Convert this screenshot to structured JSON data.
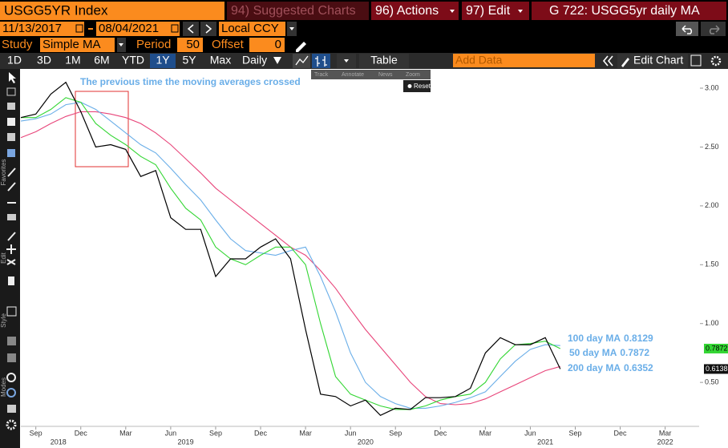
{
  "header": {
    "security": "USGG5YR Index",
    "suggested": "94) Suggested Charts",
    "actions": "96) Actions",
    "edit": "97) Edit",
    "chart_id": "G 722: USGG5yr daily MA"
  },
  "controls": {
    "start_date": "11/13/2017",
    "end_date": "08/04/2021",
    "currency": "Local CCY",
    "study_label": "Study",
    "study": "Simple MA",
    "period_label": "Period",
    "period": 50,
    "offset_label": "Offset",
    "offset": 0
  },
  "toolbar": {
    "range_buttons": [
      "1D",
      "3D",
      "1M",
      "6M",
      "YTD",
      "1Y",
      "5Y",
      "Max"
    ],
    "frequency": "Daily",
    "table": "Table",
    "add_data": "Add Data",
    "edit_chart": "Edit Chart"
  },
  "chart_tools": {
    "items": [
      "Track",
      "Annotate",
      "News",
      "Zoom"
    ],
    "reset": "Reset"
  },
  "sidebar_labels": [
    "Favorites",
    "Edit",
    "Style",
    "Modes"
  ],
  "chart_data": {
    "type": "line",
    "annotation": "The previous time the moving averages crossed",
    "x": [
      "2018-08",
      "2018-09",
      "2018-10",
      "2018-11",
      "2018-12",
      "2019-01",
      "2019-02",
      "2019-03",
      "2019-04",
      "2019-05",
      "2019-06",
      "2019-07",
      "2019-08",
      "2019-09",
      "2019-10",
      "2019-11",
      "2019-12",
      "2020-01",
      "2020-02",
      "2020-03",
      "2020-04",
      "2020-05",
      "2020-06",
      "2020-07",
      "2020-08",
      "2020-09",
      "2020-10",
      "2020-11",
      "2020-12",
      "2021-01",
      "2021-02",
      "2021-03",
      "2021-04",
      "2021-05",
      "2021-06",
      "2021-07",
      "2021-08"
    ],
    "series": [
      {
        "color": "#000000",
        "values": [
          2.75,
          2.78,
          2.95,
          3.05,
          2.8,
          2.5,
          2.52,
          2.48,
          2.25,
          2.3,
          1.9,
          1.8,
          1.8,
          1.4,
          1.55,
          1.55,
          1.65,
          1.72,
          1.55,
          0.95,
          0.4,
          0.38,
          0.3,
          0.35,
          0.22,
          0.28,
          0.27,
          0.37,
          0.37,
          0.38,
          0.45,
          0.75,
          0.88,
          0.82,
          0.82,
          0.88,
          0.6138
        ]
      },
      {
        "name": "100 day MA",
        "color": "#6aaee8",
        "values": [
          2.72,
          2.74,
          2.78,
          2.86,
          2.88,
          2.82,
          2.72,
          2.62,
          2.52,
          2.45,
          2.32,
          2.18,
          2.05,
          1.88,
          1.72,
          1.62,
          1.6,
          1.58,
          1.62,
          1.65,
          1.4,
          1.1,
          0.75,
          0.5,
          0.38,
          0.32,
          0.28,
          0.28,
          0.3,
          0.33,
          0.37,
          0.42,
          0.55,
          0.68,
          0.78,
          0.82,
          0.8129
        ]
      },
      {
        "name": "50 day MA",
        "color": "#33d633",
        "values": [
          2.75,
          2.75,
          2.82,
          2.92,
          2.88,
          2.7,
          2.6,
          2.52,
          2.42,
          2.35,
          2.15,
          1.98,
          1.88,
          1.65,
          1.55,
          1.5,
          1.58,
          1.65,
          1.65,
          1.5,
          1.0,
          0.55,
          0.4,
          0.35,
          0.3,
          0.27,
          0.27,
          0.3,
          0.35,
          0.38,
          0.4,
          0.5,
          0.7,
          0.82,
          0.83,
          0.85,
          0.7872
        ]
      },
      {
        "name": "200 day MA",
        "color": "#e8457a",
        "values": [
          2.58,
          2.63,
          2.7,
          2.76,
          2.8,
          2.8,
          2.78,
          2.75,
          2.7,
          2.62,
          2.52,
          2.4,
          2.28,
          2.15,
          2.05,
          1.95,
          1.85,
          1.75,
          1.65,
          1.58,
          1.45,
          1.3,
          1.12,
          0.95,
          0.8,
          0.65,
          0.5,
          0.38,
          0.32,
          0.31,
          0.32,
          0.36,
          0.42,
          0.48,
          0.54,
          0.6,
          0.6352
        ]
      }
    ],
    "xlim": [
      "2018-08",
      "2022-05"
    ],
    "xticks": [
      {
        "value": "2018-09",
        "label": "Sep"
      },
      {
        "value": "2018-12",
        "label": "Dec"
      },
      {
        "value": "2019-03",
        "label": "Mar"
      },
      {
        "value": "2019-06",
        "label": "Jun"
      },
      {
        "value": "2019-09",
        "label": "Sep"
      },
      {
        "value": "2019-12",
        "label": "Dec"
      },
      {
        "value": "2020-03",
        "label": "Mar"
      },
      {
        "value": "2020-06",
        "label": "Jun"
      },
      {
        "value": "2020-09",
        "label": "Sep"
      },
      {
        "value": "2020-12",
        "label": "Dec"
      },
      {
        "value": "2021-03",
        "label": "Mar"
      },
      {
        "value": "2021-06",
        "label": "Jun"
      },
      {
        "value": "2021-09",
        "label": "Sep"
      },
      {
        "value": "2021-12",
        "label": "Dec"
      },
      {
        "value": "2022-03",
        "label": "Mar"
      }
    ],
    "year_labels": [
      "2018",
      "2019",
      "2020",
      "2021",
      "2022"
    ],
    "ylim": [
      0.14,
      3.15
    ],
    "yticks": [
      {
        "value": 0.5,
        "label": "0.50"
      },
      {
        "value": 1,
        "label": "1.00"
      },
      {
        "value": 1.5,
        "label": "1.50"
      },
      {
        "value": 2,
        "label": "2.00"
      },
      {
        "value": 2.5,
        "label": "2.50"
      },
      {
        "value": 3,
        "label": "3.00"
      }
    ]
  }
}
